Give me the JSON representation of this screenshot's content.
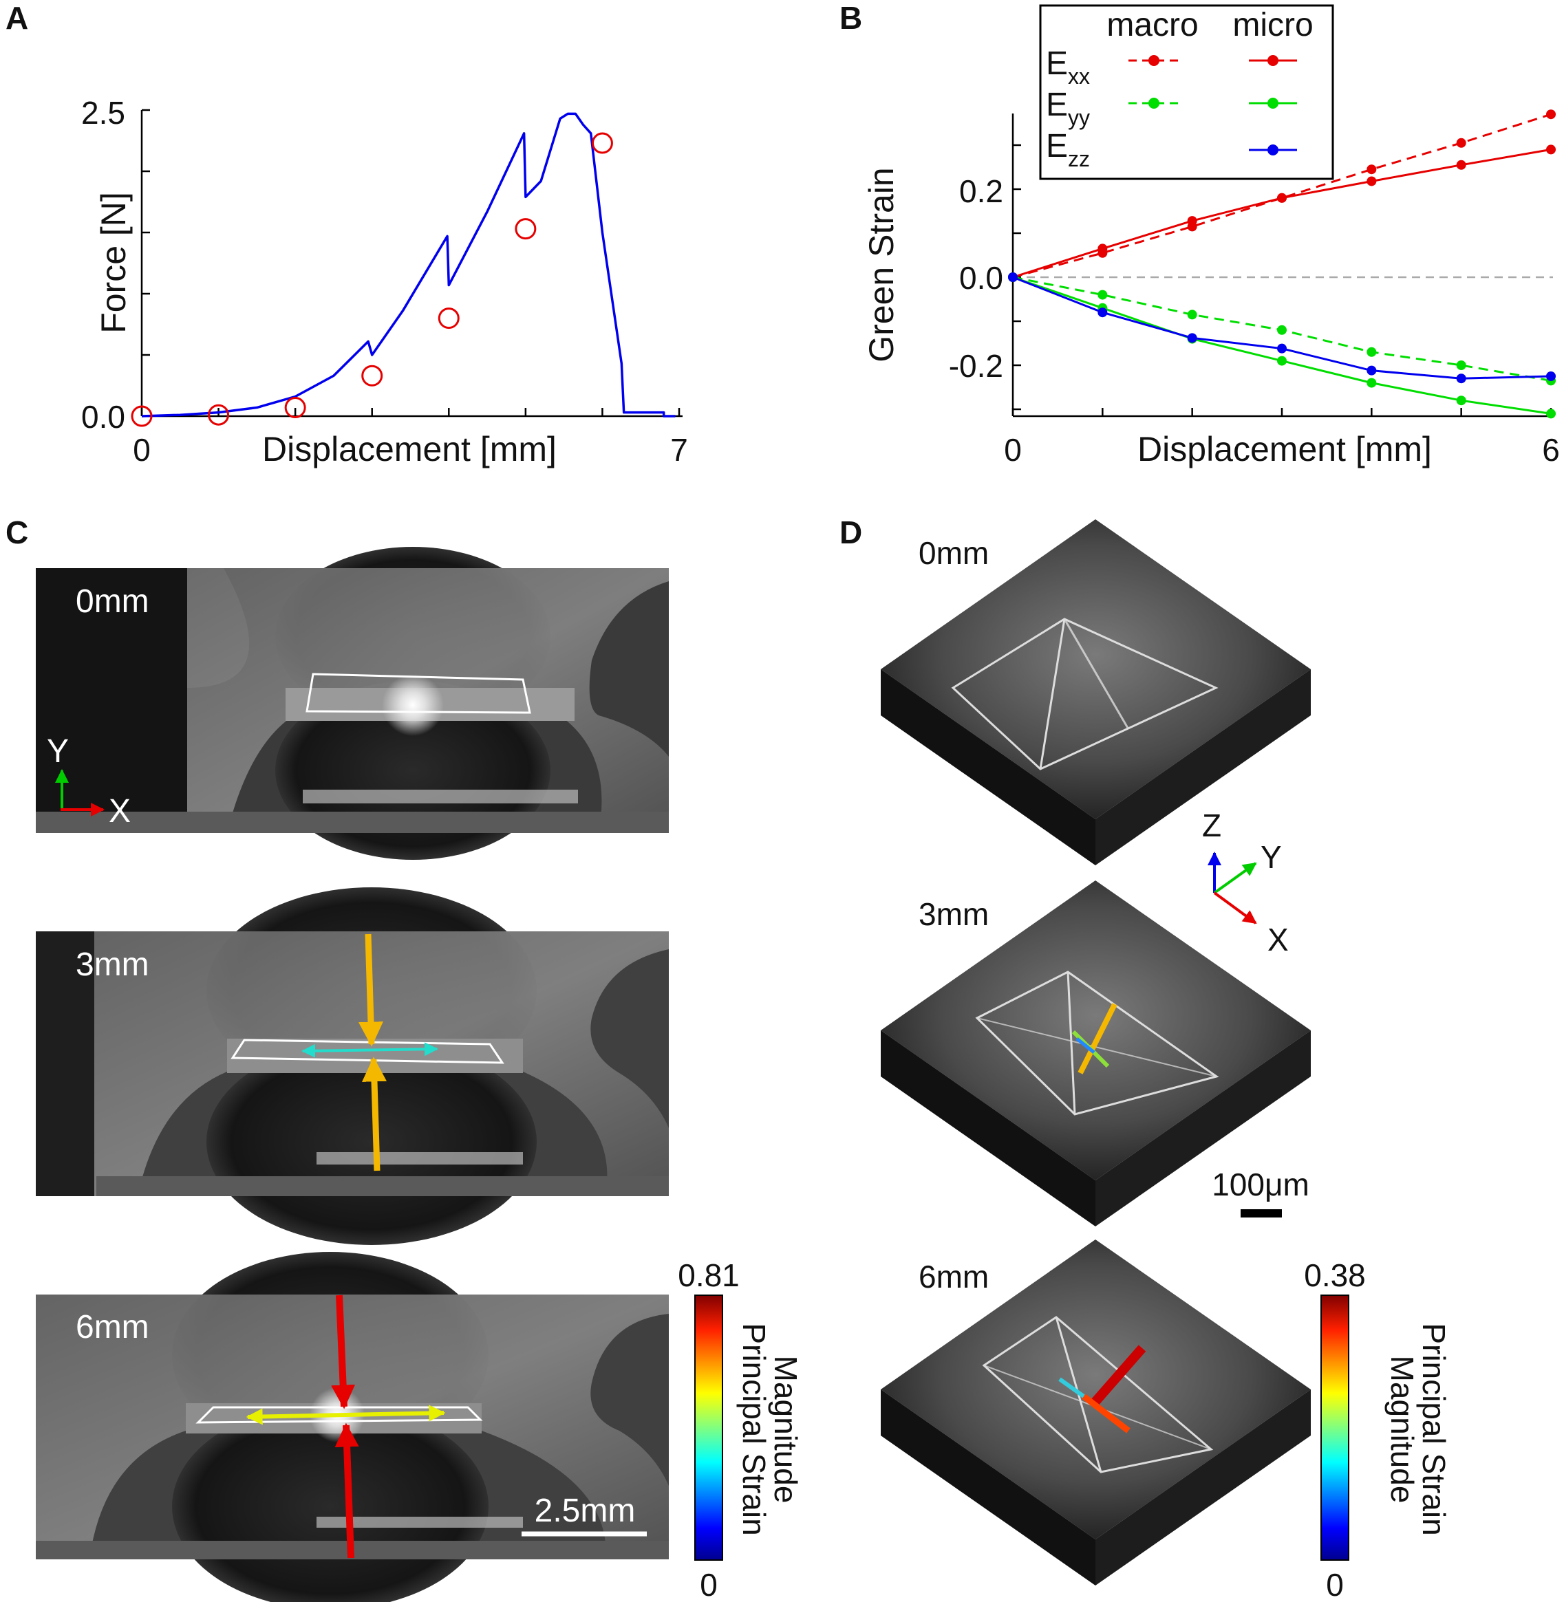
{
  "panels": {
    "a": "A",
    "b": "B",
    "c": "C",
    "d": "D"
  },
  "colors": {
    "red": "#e60000",
    "green": "#00dd00",
    "blue": "#0000ee",
    "orange": "#f5b800",
    "cyan": "#22ddcc",
    "yellow": "#e6f000"
  },
  "chart_data": [
    {
      "type": "line",
      "title": "",
      "xlabel": "Displacement [mm]",
      "ylabel": "Force [N]",
      "xlim": [
        0,
        7
      ],
      "ylim": [
        0,
        2.5
      ],
      "xticks": [
        "0",
        "7"
      ],
      "yticks": [
        "0.0",
        "2.5"
      ],
      "series": [
        {
          "name": "force",
          "color": "#0000ee",
          "x": [
            0,
            0.5,
            1,
            1.5,
            2,
            2.5,
            2.95,
            3.0,
            3.4,
            3.98,
            4.0,
            4.5,
            4.98,
            5.0,
            5.2,
            5.45,
            5.55,
            5.65,
            5.75,
            5.85,
            6.0,
            6.25,
            6.28,
            6.8,
            6.8,
            6.95
          ],
          "y": [
            0,
            0.01,
            0.03,
            0.07,
            0.16,
            0.33,
            0.61,
            0.5,
            0.86,
            1.47,
            1.07,
            1.67,
            2.31,
            1.79,
            1.92,
            2.43,
            2.47,
            2.47,
            2.38,
            2.31,
            1.5,
            0.43,
            0.03,
            0.03,
            0,
            0
          ]
        },
        {
          "name": "markers",
          "color": "#e60000",
          "marker": "open-circle",
          "x": [
            0,
            1,
            2,
            3,
            4,
            5,
            6
          ],
          "y": [
            0,
            0.01,
            0.07,
            0.33,
            0.8,
            1.53,
            2.23
          ]
        }
      ]
    },
    {
      "type": "line",
      "title": "",
      "xlabel": "Displacement [mm]",
      "ylabel": "Green Strain",
      "xlim": [
        0,
        6
      ],
      "ylim": [
        -0.31,
        0.37
      ],
      "xticks": [
        "0",
        "6"
      ],
      "yticks": [
        "0.2",
        "0.0",
        "-0.2"
      ],
      "legend": {
        "position": "top-left",
        "col_headers": [
          "macro",
          "micro"
        ]
      },
      "series": [
        {
          "name": "Exx macro",
          "label_main": "E",
          "label_sub": "xx",
          "color": "#e60000",
          "dash": true,
          "x": [
            0,
            1,
            2,
            3,
            4,
            5,
            6
          ],
          "y": [
            0,
            0.055,
            0.115,
            0.18,
            0.245,
            0.305,
            0.37
          ]
        },
        {
          "name": "Exx micro",
          "color": "#e60000",
          "dash": false,
          "x": [
            0,
            1,
            2,
            3,
            4,
            5,
            6
          ],
          "y": [
            0,
            0.065,
            0.128,
            0.18,
            0.218,
            0.255,
            0.29
          ]
        },
        {
          "name": "Eyy macro",
          "label_main": "E",
          "label_sub": "yy",
          "color": "#00dd00",
          "dash": true,
          "x": [
            0,
            1,
            2,
            3,
            4,
            5,
            6
          ],
          "y": [
            0,
            -0.04,
            -0.085,
            -0.12,
            -0.17,
            -0.2,
            -0.235
          ]
        },
        {
          "name": "Eyy micro",
          "color": "#00dd00",
          "dash": false,
          "x": [
            0,
            1,
            2,
            3,
            4,
            5,
            6
          ],
          "y": [
            0,
            -0.07,
            -0.14,
            -0.19,
            -0.24,
            -0.28,
            -0.31
          ]
        },
        {
          "name": "Ezz micro",
          "label_main": "E",
          "label_sub": "zz",
          "color": "#0000ee",
          "dash": false,
          "x": [
            0,
            1,
            2,
            3,
            4,
            5,
            6
          ],
          "y": [
            0,
            -0.08,
            -0.138,
            -0.162,
            -0.212,
            -0.23,
            -0.225
          ]
        }
      ]
    }
  ],
  "panel_c": {
    "frames": [
      "0mm",
      "3mm",
      "6mm"
    ],
    "axis_x": "X",
    "axis_y": "Y",
    "scale_bar": "2.5mm",
    "colorbar": {
      "max": "0.81",
      "min": "0",
      "title_line1": "Principal Strain",
      "title_line2": "Magnitude"
    }
  },
  "panel_d": {
    "frames": [
      "0mm",
      "3mm",
      "6mm"
    ],
    "axis_x": "X",
    "axis_y": "Y",
    "axis_z": "Z",
    "scale_bar": "100μm",
    "colorbar": {
      "max": "0.38",
      "min": "0",
      "title_line1": "Principal Strain",
      "title_line2": "Magnitude"
    }
  }
}
